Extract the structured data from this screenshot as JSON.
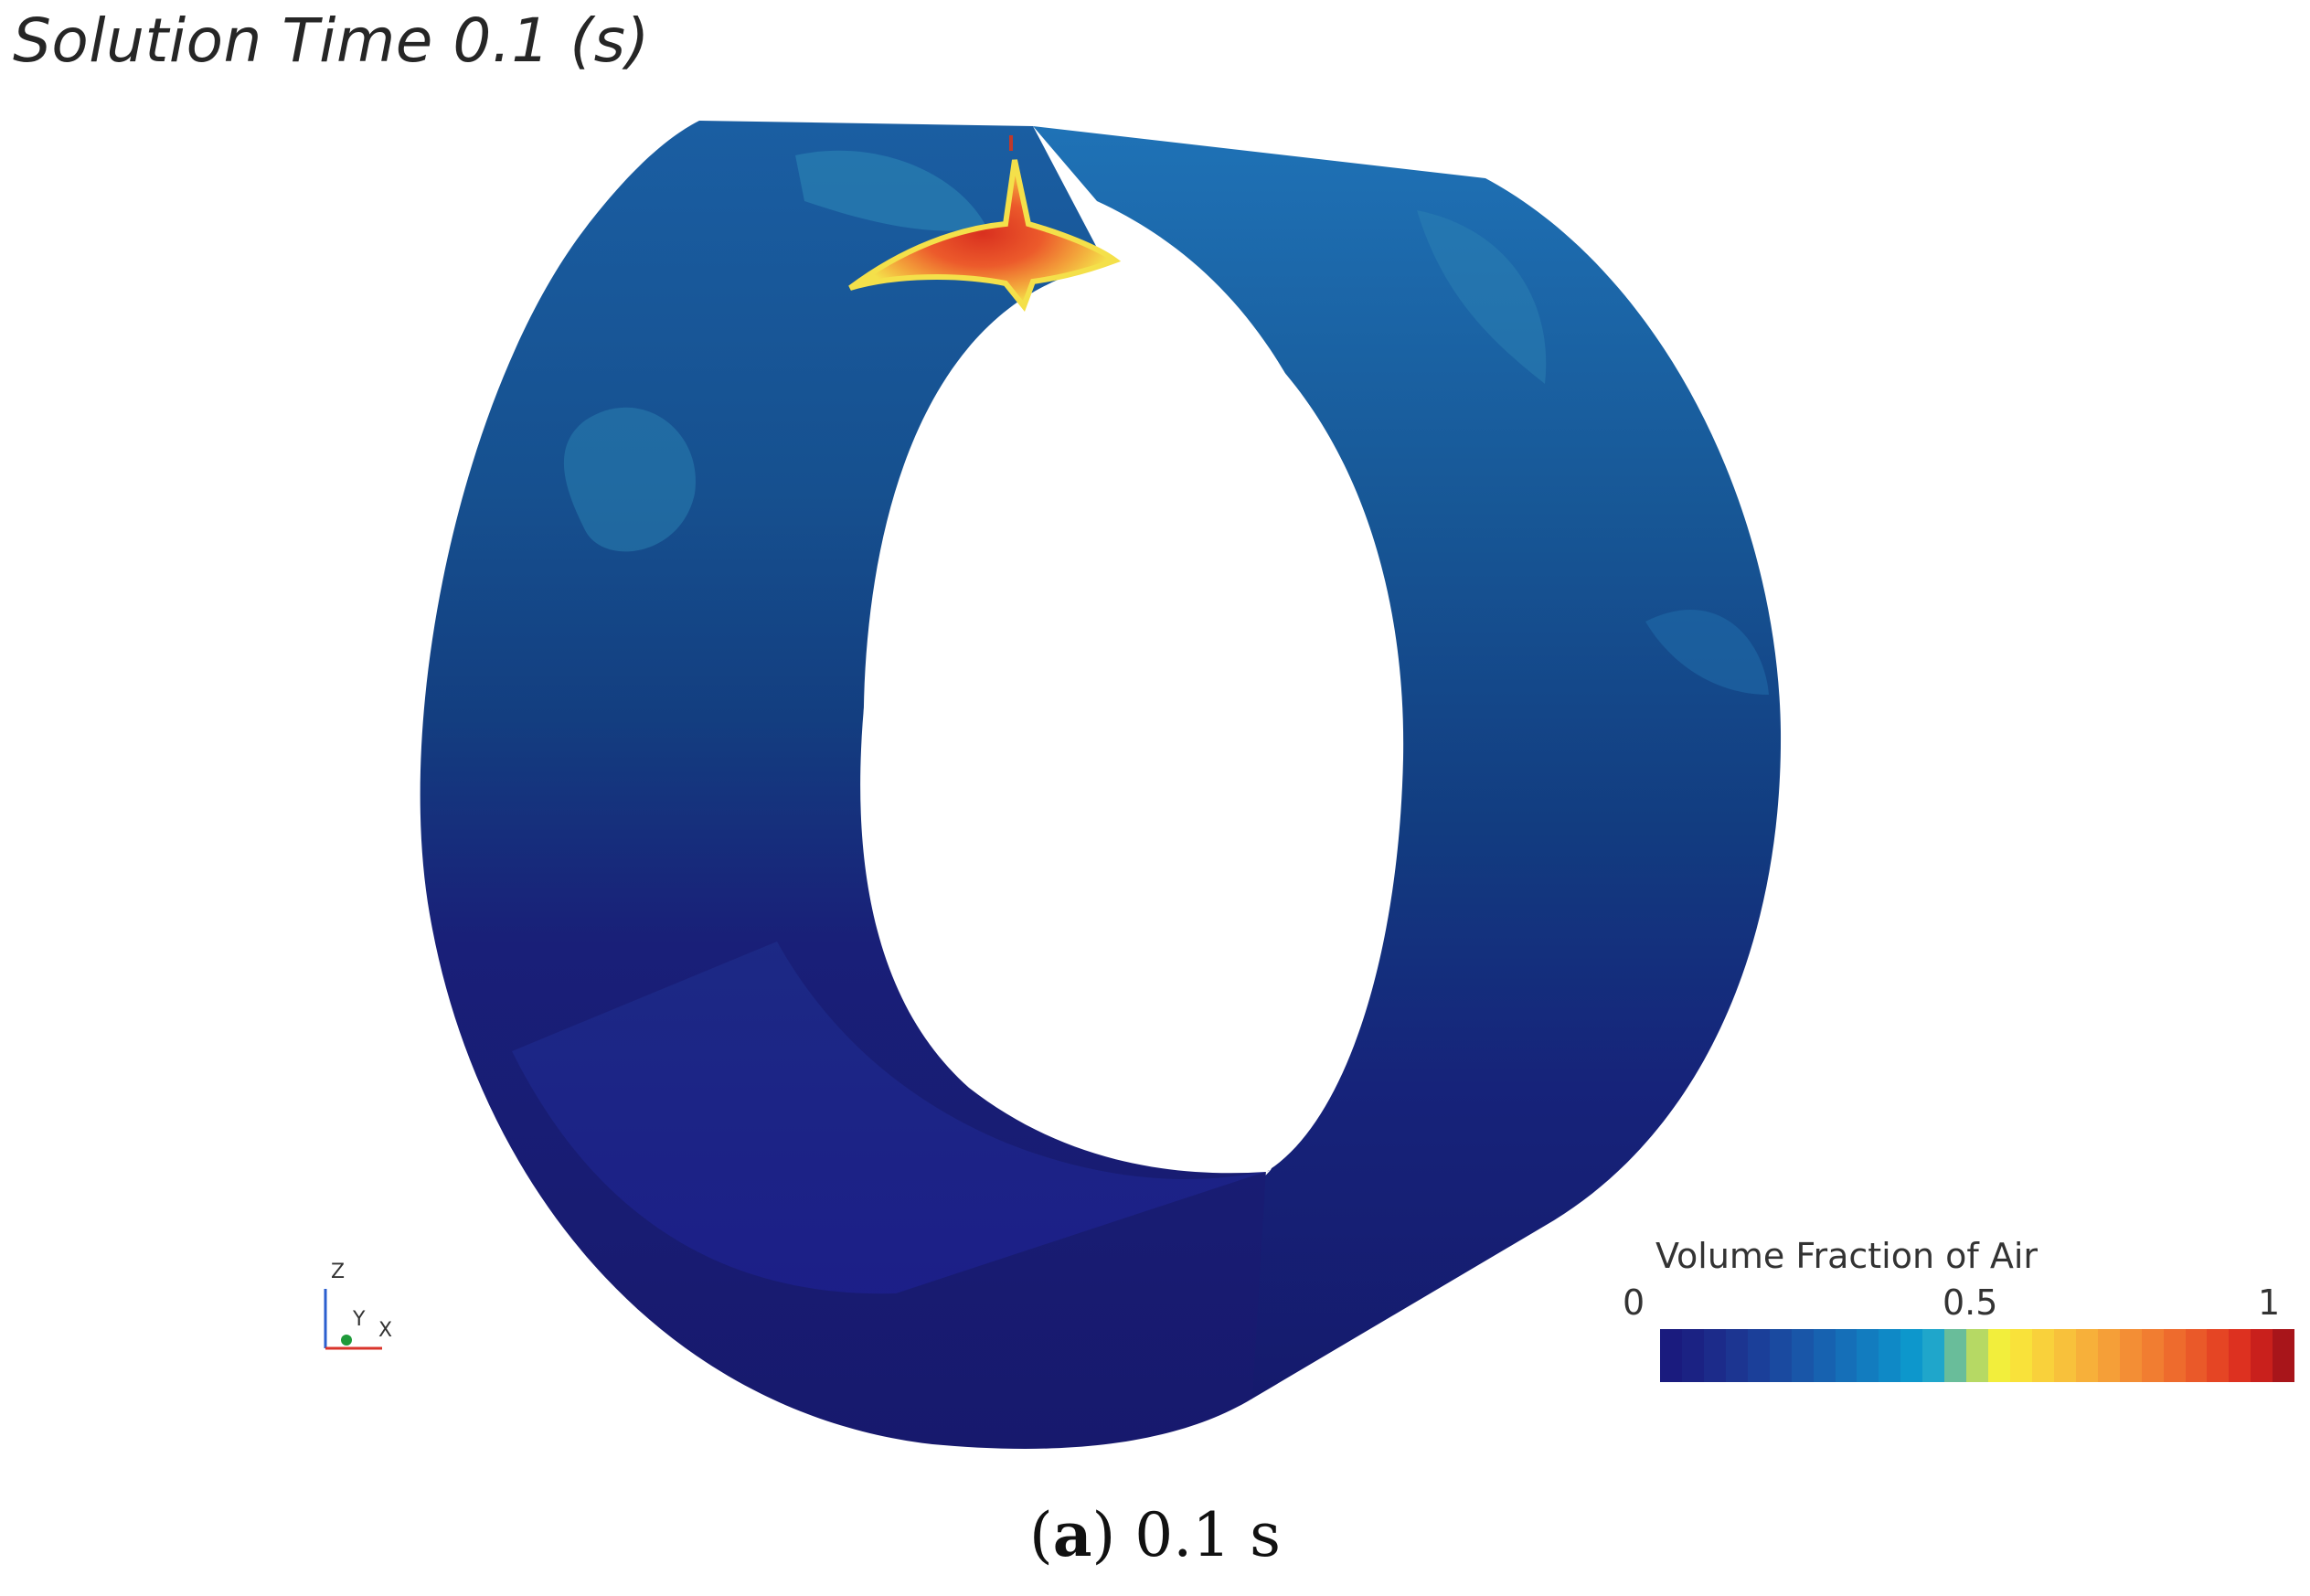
{
  "header": {
    "solution_time_label": "Solution Time 0.1 (s)"
  },
  "legend": {
    "title": "Volume Fraction of Air",
    "tick_min": "0",
    "tick_mid": "0.5",
    "tick_max": "1",
    "colors": [
      "#1a1b7e",
      "#1b2283",
      "#1c2b8a",
      "#1c3591",
      "#1b3f99",
      "#1a4aa0",
      "#1956a8",
      "#1762b0",
      "#156fb8",
      "#127cbf",
      "#0f89c6",
      "#0d97cc",
      "#1fa6cb",
      "#69bd9a",
      "#b6d964",
      "#f2ee3c",
      "#f9e23a",
      "#f9d13b",
      "#f8c13b",
      "#f7b03a",
      "#f59f38",
      "#f38e35",
      "#f17d31",
      "#ee6b2d",
      "#ea5929",
      "#e54524",
      "#dd3120",
      "#c9201c",
      "#a8151a"
    ]
  },
  "caption": {
    "letter": "a",
    "value": "0.1 s"
  },
  "axes": {
    "z": "Z",
    "y": "Y",
    "x": "X"
  },
  "scene_colors": {
    "deep_blue": "#1a1c7a",
    "mid_blue": "#123f86",
    "light_blue": "#1b62a3",
    "teal": "#2a7fb0",
    "air_core": "#e8452a",
    "air_edge": "#f2a33a",
    "air_rim": "#f5e04a"
  }
}
